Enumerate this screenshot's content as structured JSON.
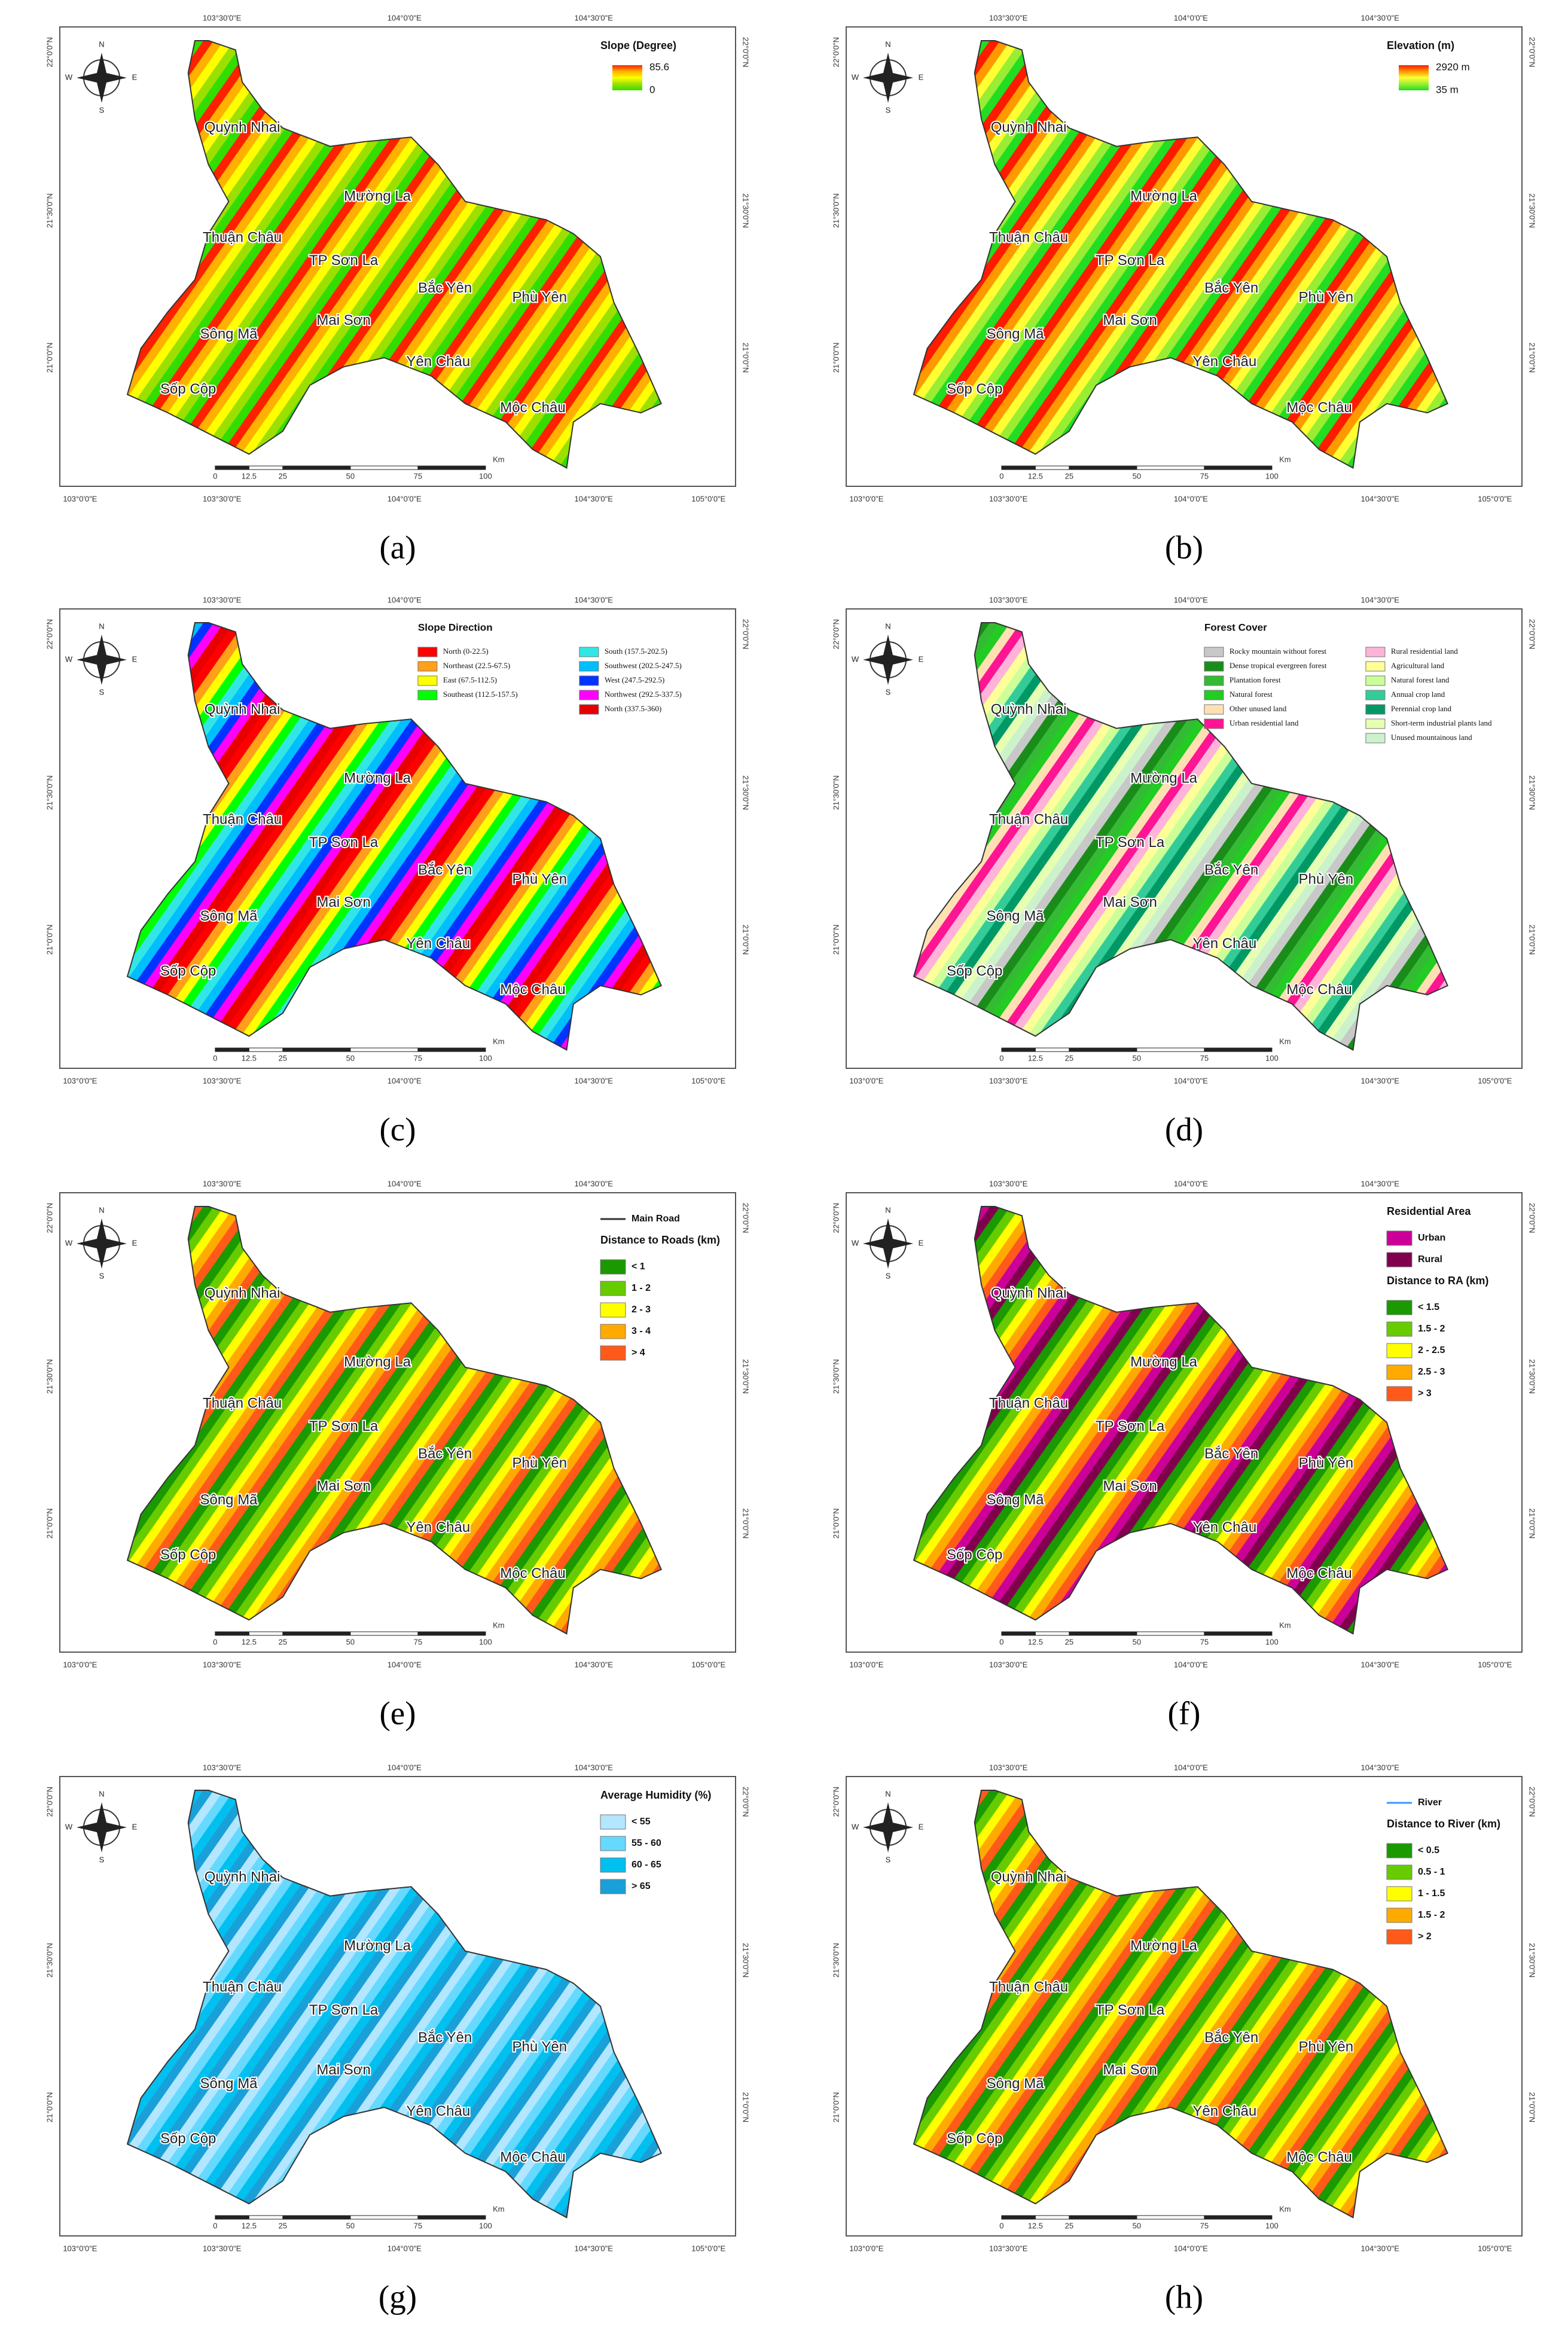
{
  "figure": {
    "coordinates": {
      "top": [
        "103°30'0\"E",
        "104°0'0\"E",
        "104°30'0\"E"
      ],
      "bottom": [
        "103°0'0\"E",
        "103°30'0\"E",
        "104°0'0\"E",
        "104°30'0\"E",
        "105°0'0\"E"
      ],
      "side": [
        "22°0'0\"N",
        "21°30'0\"N",
        "21°0'0\"N"
      ]
    },
    "compass": [
      "N",
      "S",
      "W",
      "E"
    ],
    "scale": [
      "0",
      "12.5",
      "25",
      "50",
      "75",
      "100",
      "Km"
    ],
    "places": [
      "Quỳnh Nhai",
      "Mường La",
      "Thuận Châu",
      "TP Sơn La",
      "Bắc Yên",
      "Phù Yên",
      "Sông Mã",
      "Mai Sơn",
      "Yên Châu",
      "Sốp Cộp",
      "Mộc Châu"
    ],
    "panels": [
      {
        "label": "(a)",
        "legend": {
          "groups": [
            {
              "title": "Slope (Degree)",
              "gradient": [
                "#ff2000",
                "#ffb000",
                "#ffff00",
                "#9be000",
                "#33dd00"
              ],
              "max": "85.6",
              "min": "0"
            }
          ]
        }
      },
      {
        "label": "(b)",
        "legend": {
          "groups": [
            {
              "title": "Elevation (m)",
              "gradient": [
                "#ff1a00",
                "#ff9900",
                "#ffff33",
                "#99ee33",
                "#22dd22"
              ],
              "max": "2920 m",
              "min": "35 m"
            }
          ]
        }
      },
      {
        "label": "(c)",
        "legend": {
          "columns": 2,
          "groups": [
            {
              "title": "Slope Direction",
              "entries": [
                {
                  "label": "North (0-22.5)",
                  "color": "#ff0000"
                },
                {
                  "label": "Northeast (22.5-67.5)",
                  "color": "#ff9f1a"
                },
                {
                  "label": "East (67.5-112.5)",
                  "color": "#ffff00"
                },
                {
                  "label": "Southeast (112.5-157.5)",
                  "color": "#00ff00"
                },
                {
                  "label": "South (157.5-202.5)",
                  "color": "#33e6e6"
                },
                {
                  "label": "Southwest (202.5-247.5)",
                  "color": "#00bfff"
                },
                {
                  "label": "West (247.5-292.5)",
                  "color": "#0033ff"
                },
                {
                  "label": "Northwest (292.5-337.5)",
                  "color": "#ff00ff"
                },
                {
                  "label": "North (337.5-360)",
                  "color": "#e60000"
                }
              ]
            }
          ]
        }
      },
      {
        "label": "(d)",
        "legend": {
          "columns": 2,
          "groups": [
            {
              "title": "Forest Cover",
              "entries": [
                {
                  "label": "Rocky mountain without forest",
                  "color": "#c8c8c8"
                },
                {
                  "label": "Dense tropical evergreen forest",
                  "color": "#1a8c1a"
                },
                {
                  "label": "Plantation forest",
                  "color": "#33bb33"
                },
                {
                  "label": "Natural forest",
                  "color": "#22cc22"
                },
                {
                  "label": "Other unused land",
                  "color": "#ffe0b3"
                },
                {
                  "label": "Urban residential land",
                  "color": "#ff1493"
                },
                {
                  "label": "Rural residential land",
                  "color": "#ffb3d9"
                },
                {
                  "label": "Agricultural land",
                  "color": "#ffff99"
                },
                {
                  "label": "Natural forest land",
                  "color": "#ccff99"
                },
                {
                  "label": "Annual crop land",
                  "color": "#33cc99"
                },
                {
                  "label": "Perennial crop land",
                  "color": "#009966"
                },
                {
                  "label": "Short-term industrial plants land",
                  "color": "#e6ffb3"
                },
                {
                  "label": "Unused mountainous land",
                  "color": "#ccf2cc"
                }
              ]
            }
          ]
        }
      },
      {
        "label": "(e)",
        "legend": {
          "groups": [
            {
              "entries": [
                {
                  "label": "Main Road",
                  "color": "#333333",
                  "line": true
                }
              ]
            },
            {
              "title": "Distance to Roads (km)",
              "entries": [
                {
                  "label": "< 1",
                  "color": "#1a9900"
                },
                {
                  "label": "1 - 2",
                  "color": "#66cc00"
                },
                {
                  "label": "2 - 3",
                  "color": "#ffff00"
                },
                {
                  "label": "3 - 4",
                  "color": "#ffaa00"
                },
                {
                  "label": "> 4",
                  "color": "#ff5a1a"
                }
              ]
            }
          ]
        }
      },
      {
        "label": "(f)",
        "legend": {
          "groups": [
            {
              "title": "Residential Area",
              "entries": [
                {
                  "label": "Urban",
                  "color": "#cc0099"
                },
                {
                  "label": "Rural",
                  "color": "#80004d"
                }
              ]
            },
            {
              "title": "Distance to RA (km)",
              "entries": [
                {
                  "label": "< 1.5",
                  "color": "#1a9900"
                },
                {
                  "label": "1.5 - 2",
                  "color": "#66cc00"
                },
                {
                  "label": "2 - 2.5",
                  "color": "#ffff00"
                },
                {
                  "label": "2.5 - 3",
                  "color": "#ffaa00"
                },
                {
                  "label": "> 3",
                  "color": "#ff5a1a"
                }
              ]
            }
          ]
        }
      },
      {
        "label": "(g)",
        "legend": {
          "groups": [
            {
              "title": "Average Humidity (%)",
              "entries": [
                {
                  "label": "< 55",
                  "color": "#b3e6ff"
                },
                {
                  "label": "55 - 60",
                  "color": "#66d9ff"
                },
                {
                  "label": "60 - 65",
                  "color": "#00c0f0"
                },
                {
                  "label": "> 65",
                  "color": "#1aa0d8"
                }
              ]
            }
          ]
        }
      },
      {
        "label": "(h)",
        "legend": {
          "groups": [
            {
              "entries": [
                {
                  "label": "River",
                  "color": "#3399ff",
                  "line": true
                }
              ]
            },
            {
              "title": "Distance to River (km)",
              "entries": [
                {
                  "label": "< 0.5",
                  "color": "#1a9900"
                },
                {
                  "label": "0.5 - 1",
                  "color": "#66cc00"
                },
                {
                  "label": "1 - 1.5",
                  "color": "#ffff00"
                },
                {
                  "label": "1.5 - 2",
                  "color": "#ffaa00"
                },
                {
                  "label": "> 2",
                  "color": "#ff5a1a"
                }
              ]
            }
          ]
        }
      }
    ]
  }
}
